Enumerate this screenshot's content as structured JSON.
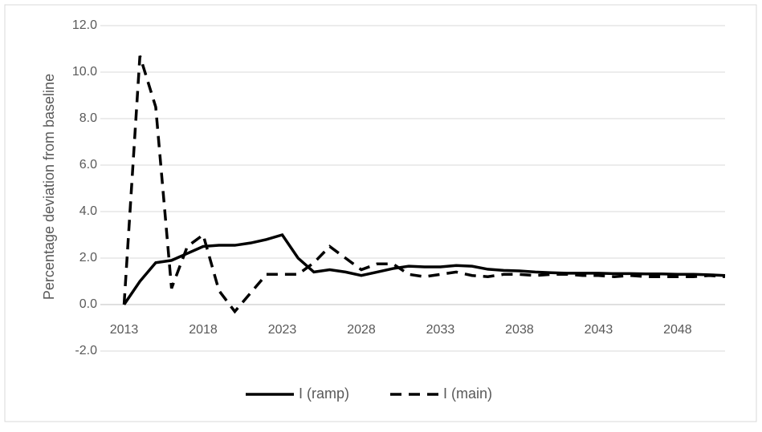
{
  "chart_data": {
    "type": "line",
    "y_label": "Percentage deviation from baseline",
    "x": [
      2013,
      2014,
      2015,
      2016,
      2017,
      2018,
      2019,
      2020,
      2021,
      2022,
      2023,
      2024,
      2025,
      2026,
      2027,
      2028,
      2029,
      2030,
      2031,
      2032,
      2033,
      2034,
      2035,
      2036,
      2037,
      2038,
      2039,
      2040,
      2041,
      2042,
      2043,
      2044,
      2045,
      2046,
      2047,
      2048,
      2049,
      2050,
      2051
    ],
    "series": [
      {
        "name": "I (ramp)",
        "color": "#000000",
        "dash": "solid",
        "values": [
          0,
          1.0,
          1.8,
          1.9,
          2.2,
          2.5,
          2.55,
          2.55,
          2.65,
          2.8,
          3.0,
          2.0,
          1.4,
          1.5,
          1.4,
          1.25,
          1.4,
          1.55,
          1.65,
          1.62,
          1.62,
          1.68,
          1.65,
          1.52,
          1.47,
          1.45,
          1.4,
          1.37,
          1.35,
          1.35,
          1.35,
          1.33,
          1.33,
          1.32,
          1.32,
          1.3,
          1.3,
          1.28,
          1.25
        ]
      },
      {
        "name": "I (main)",
        "color": "#000000",
        "dash": "dashed",
        "values": [
          0,
          10.7,
          8.5,
          0.7,
          2.5,
          3.0,
          0.6,
          -0.3,
          0.5,
          1.3,
          1.3,
          1.3,
          1.8,
          2.5,
          2.0,
          1.5,
          1.75,
          1.75,
          1.3,
          1.2,
          1.3,
          1.4,
          1.25,
          1.2,
          1.3,
          1.3,
          1.25,
          1.3,
          1.3,
          1.25,
          1.25,
          1.2,
          1.25,
          1.2,
          1.2,
          1.2,
          1.2,
          1.25,
          1.2
        ]
      }
    ],
    "xlim": [
      2011.5,
      2051
    ],
    "xticks": [
      2013,
      2018,
      2023,
      2028,
      2033,
      2038,
      2043,
      2048
    ],
    "ylim": [
      -2,
      12
    ],
    "yticks": [
      {
        "value": -2,
        "label": "-2.0"
      },
      {
        "value": 0,
        "label": "0.0"
      },
      {
        "value": 2,
        "label": "2.0"
      },
      {
        "value": 4,
        "label": "4.0"
      },
      {
        "value": 6,
        "label": "6.0"
      },
      {
        "value": 8,
        "label": "8.0"
      },
      {
        "value": 10,
        "label": "10.0"
      },
      {
        "value": 12,
        "label": "12.0"
      }
    ],
    "grid": true,
    "legend": "bottom"
  }
}
